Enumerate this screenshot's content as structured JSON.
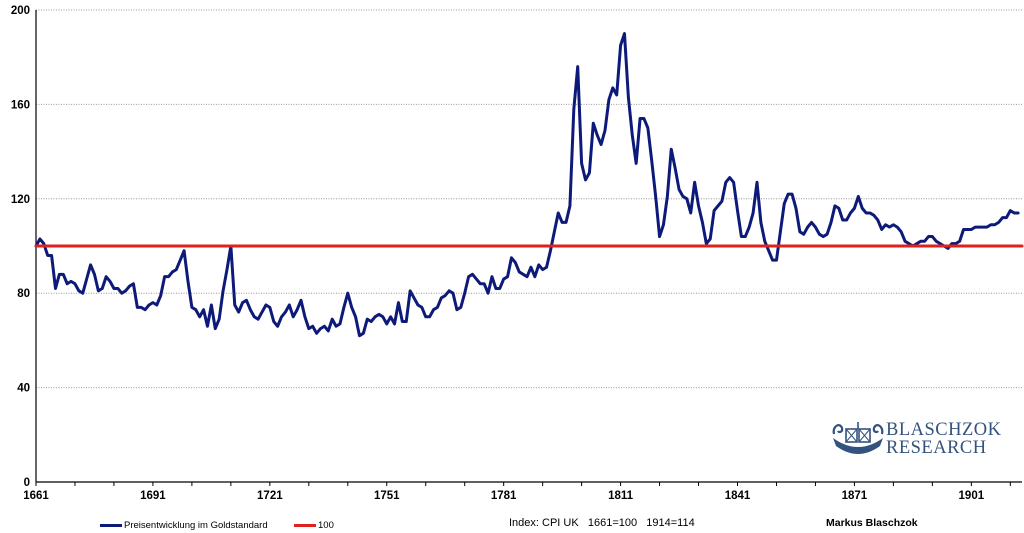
{
  "chart_data": {
    "type": "line",
    "title": "",
    "xlabel": "",
    "ylabel": "",
    "xlim": [
      1661,
      1914
    ],
    "ylim": [
      0,
      200
    ],
    "x_ticks": [
      "1661",
      "1691",
      "1721",
      "1751",
      "1781",
      "1811",
      "1841",
      "1871",
      "1901"
    ],
    "y_ticks": [
      "0",
      "40",
      "80",
      "120",
      "160",
      "200"
    ],
    "grid": "horizontal",
    "series": [
      {
        "name": "Preisentwicklung im Goldstandard",
        "color": "#0d1a7a",
        "points": [
          [
            1661,
            100
          ],
          [
            1662,
            103
          ],
          [
            1663,
            101
          ],
          [
            1664,
            96
          ],
          [
            1665,
            96
          ],
          [
            1666,
            82
          ],
          [
            1667,
            88
          ],
          [
            1668,
            88
          ],
          [
            1669,
            84
          ],
          [
            1670,
            85
          ],
          [
            1671,
            84
          ],
          [
            1672,
            81
          ],
          [
            1673,
            80
          ],
          [
            1674,
            86
          ],
          [
            1675,
            92
          ],
          [
            1676,
            88
          ],
          [
            1677,
            81
          ],
          [
            1678,
            82
          ],
          [
            1679,
            87
          ],
          [
            1680,
            85
          ],
          [
            1681,
            82
          ],
          [
            1682,
            82
          ],
          [
            1683,
            80
          ],
          [
            1684,
            81
          ],
          [
            1685,
            83
          ],
          [
            1686,
            84
          ],
          [
            1687,
            74
          ],
          [
            1688,
            74
          ],
          [
            1689,
            73
          ],
          [
            1690,
            75
          ],
          [
            1691,
            76
          ],
          [
            1692,
            75
          ],
          [
            1693,
            79
          ],
          [
            1694,
            87
          ],
          [
            1695,
            87
          ],
          [
            1696,
            89
          ],
          [
            1697,
            90
          ],
          [
            1698,
            94
          ],
          [
            1699,
            98
          ],
          [
            1700,
            85
          ],
          [
            1701,
            74
          ],
          [
            1702,
            73
          ],
          [
            1703,
            70
          ],
          [
            1704,
            73
          ],
          [
            1705,
            66
          ],
          [
            1706,
            75
          ],
          [
            1707,
            65
          ],
          [
            1708,
            69
          ],
          [
            1709,
            81
          ],
          [
            1710,
            90
          ],
          [
            1711,
            100
          ],
          [
            1712,
            75
          ],
          [
            1713,
            72
          ],
          [
            1714,
            76
          ],
          [
            1715,
            77
          ],
          [
            1716,
            73
          ],
          [
            1717,
            70
          ],
          [
            1718,
            69
          ],
          [
            1719,
            72
          ],
          [
            1720,
            75
          ],
          [
            1721,
            74
          ],
          [
            1722,
            68
          ],
          [
            1723,
            66
          ],
          [
            1724,
            70
          ],
          [
            1725,
            72
          ],
          [
            1726,
            75
          ],
          [
            1727,
            70
          ],
          [
            1728,
            73
          ],
          [
            1729,
            77
          ],
          [
            1730,
            70
          ],
          [
            1731,
            65
          ],
          [
            1732,
            66
          ],
          [
            1733,
            63
          ],
          [
            1734,
            65
          ],
          [
            1735,
            66
          ],
          [
            1736,
            64
          ],
          [
            1737,
            69
          ],
          [
            1738,
            66
          ],
          [
            1739,
            67
          ],
          [
            1740,
            74
          ],
          [
            1741,
            80
          ],
          [
            1742,
            74
          ],
          [
            1743,
            70
          ],
          [
            1744,
            62
          ],
          [
            1745,
            63
          ],
          [
            1746,
            69
          ],
          [
            1747,
            68
          ],
          [
            1748,
            70
          ],
          [
            1749,
            71
          ],
          [
            1750,
            70
          ],
          [
            1751,
            67
          ],
          [
            1752,
            70
          ],
          [
            1753,
            67
          ],
          [
            1754,
            76
          ],
          [
            1755,
            68
          ],
          [
            1756,
            68
          ],
          [
            1757,
            81
          ],
          [
            1758,
            78
          ],
          [
            1759,
            75
          ],
          [
            1760,
            74
          ],
          [
            1761,
            70
          ],
          [
            1762,
            70
          ],
          [
            1763,
            73
          ],
          [
            1764,
            74
          ],
          [
            1765,
            78
          ],
          [
            1766,
            79
          ],
          [
            1767,
            81
          ],
          [
            1768,
            80
          ],
          [
            1769,
            73
          ],
          [
            1770,
            74
          ],
          [
            1771,
            80
          ],
          [
            1772,
            87
          ],
          [
            1773,
            88
          ],
          [
            1774,
            86
          ],
          [
            1775,
            84
          ],
          [
            1776,
            84
          ],
          [
            1777,
            80
          ],
          [
            1778,
            87
          ],
          [
            1779,
            82
          ],
          [
            1780,
            82
          ],
          [
            1781,
            86
          ],
          [
            1782,
            87
          ],
          [
            1783,
            95
          ],
          [
            1784,
            93
          ],
          [
            1785,
            89
          ],
          [
            1786,
            88
          ],
          [
            1787,
            87
          ],
          [
            1788,
            91
          ],
          [
            1789,
            87
          ],
          [
            1790,
            92
          ],
          [
            1791,
            90
          ],
          [
            1792,
            91
          ],
          [
            1793,
            98
          ],
          [
            1794,
            106
          ],
          [
            1795,
            114
          ],
          [
            1796,
            110
          ],
          [
            1797,
            110
          ],
          [
            1798,
            117
          ],
          [
            1799,
            158
          ],
          [
            1800,
            176
          ],
          [
            1801,
            135
          ],
          [
            1802,
            128
          ],
          [
            1803,
            131
          ],
          [
            1804,
            152
          ],
          [
            1805,
            147
          ],
          [
            1806,
            143
          ],
          [
            1807,
            149
          ],
          [
            1808,
            162
          ],
          [
            1809,
            167
          ],
          [
            1810,
            164
          ],
          [
            1811,
            185
          ],
          [
            1812,
            190
          ],
          [
            1813,
            163
          ],
          [
            1814,
            147
          ],
          [
            1815,
            135
          ],
          [
            1816,
            154
          ],
          [
            1817,
            154
          ],
          [
            1818,
            150
          ],
          [
            1819,
            136
          ],
          [
            1820,
            121
          ],
          [
            1821,
            104
          ],
          [
            1822,
            109
          ],
          [
            1823,
            121
          ],
          [
            1824,
            141
          ],
          [
            1825,
            133
          ],
          [
            1826,
            124
          ],
          [
            1827,
            121
          ],
          [
            1828,
            120
          ],
          [
            1829,
            114
          ],
          [
            1830,
            127
          ],
          [
            1831,
            117
          ],
          [
            1832,
            110
          ],
          [
            1833,
            101
          ],
          [
            1834,
            103
          ],
          [
            1835,
            115
          ],
          [
            1836,
            117
          ],
          [
            1837,
            119
          ],
          [
            1838,
            127
          ],
          [
            1839,
            129
          ],
          [
            1840,
            127
          ],
          [
            1841,
            115
          ],
          [
            1842,
            104
          ],
          [
            1843,
            104
          ],
          [
            1844,
            108
          ],
          [
            1845,
            114
          ],
          [
            1846,
            127
          ],
          [
            1847,
            110
          ],
          [
            1848,
            102
          ],
          [
            1849,
            98
          ],
          [
            1850,
            94
          ],
          [
            1851,
            94
          ],
          [
            1852,
            106
          ],
          [
            1853,
            118
          ],
          [
            1854,
            122
          ],
          [
            1855,
            122
          ],
          [
            1856,
            116
          ],
          [
            1857,
            106
          ],
          [
            1858,
            105
          ],
          [
            1859,
            108
          ],
          [
            1860,
            110
          ],
          [
            1861,
            108
          ],
          [
            1862,
            105
          ],
          [
            1863,
            104
          ],
          [
            1864,
            105
          ],
          [
            1865,
            110
          ],
          [
            1866,
            117
          ],
          [
            1867,
            116
          ],
          [
            1868,
            111
          ],
          [
            1869,
            111
          ],
          [
            1870,
            114
          ],
          [
            1871,
            116
          ],
          [
            1872,
            121
          ],
          [
            1873,
            116
          ],
          [
            1874,
            114
          ],
          [
            1875,
            114
          ],
          [
            1876,
            113
          ],
          [
            1877,
            111
          ],
          [
            1878,
            107
          ],
          [
            1879,
            109
          ],
          [
            1880,
            108
          ],
          [
            1881,
            109
          ],
          [
            1882,
            108
          ],
          [
            1883,
            106
          ],
          [
            1884,
            102
          ],
          [
            1885,
            101
          ],
          [
            1886,
            100
          ],
          [
            1887,
            101
          ],
          [
            1888,
            102
          ],
          [
            1889,
            102
          ],
          [
            1890,
            104
          ],
          [
            1891,
            104
          ],
          [
            1892,
            102
          ],
          [
            1893,
            101
          ],
          [
            1894,
            100
          ],
          [
            1895,
            99
          ],
          [
            1896,
            101
          ],
          [
            1897,
            101
          ],
          [
            1898,
            102
          ],
          [
            1899,
            107
          ],
          [
            1900,
            107
          ],
          [
            1901,
            107
          ],
          [
            1902,
            108
          ],
          [
            1903,
            108
          ],
          [
            1904,
            108
          ],
          [
            1905,
            108
          ],
          [
            1906,
            109
          ],
          [
            1907,
            109
          ],
          [
            1908,
            110
          ],
          [
            1909,
            112
          ],
          [
            1910,
            112
          ],
          [
            1911,
            115
          ],
          [
            1912,
            114
          ],
          [
            1913,
            114
          ]
        ]
      },
      {
        "name": "100",
        "color": "#e0221c",
        "points": [
          [
            1661,
            100
          ],
          [
            1914,
            100
          ]
        ]
      }
    ]
  },
  "footer": {
    "index_note": "Index: CPI UK   1661=100   1914=114",
    "author": "Markus Blaschzok"
  },
  "logo": {
    "line1": "BLASCHZOK",
    "line2": "RESEARCH",
    "color": "#34527e"
  }
}
